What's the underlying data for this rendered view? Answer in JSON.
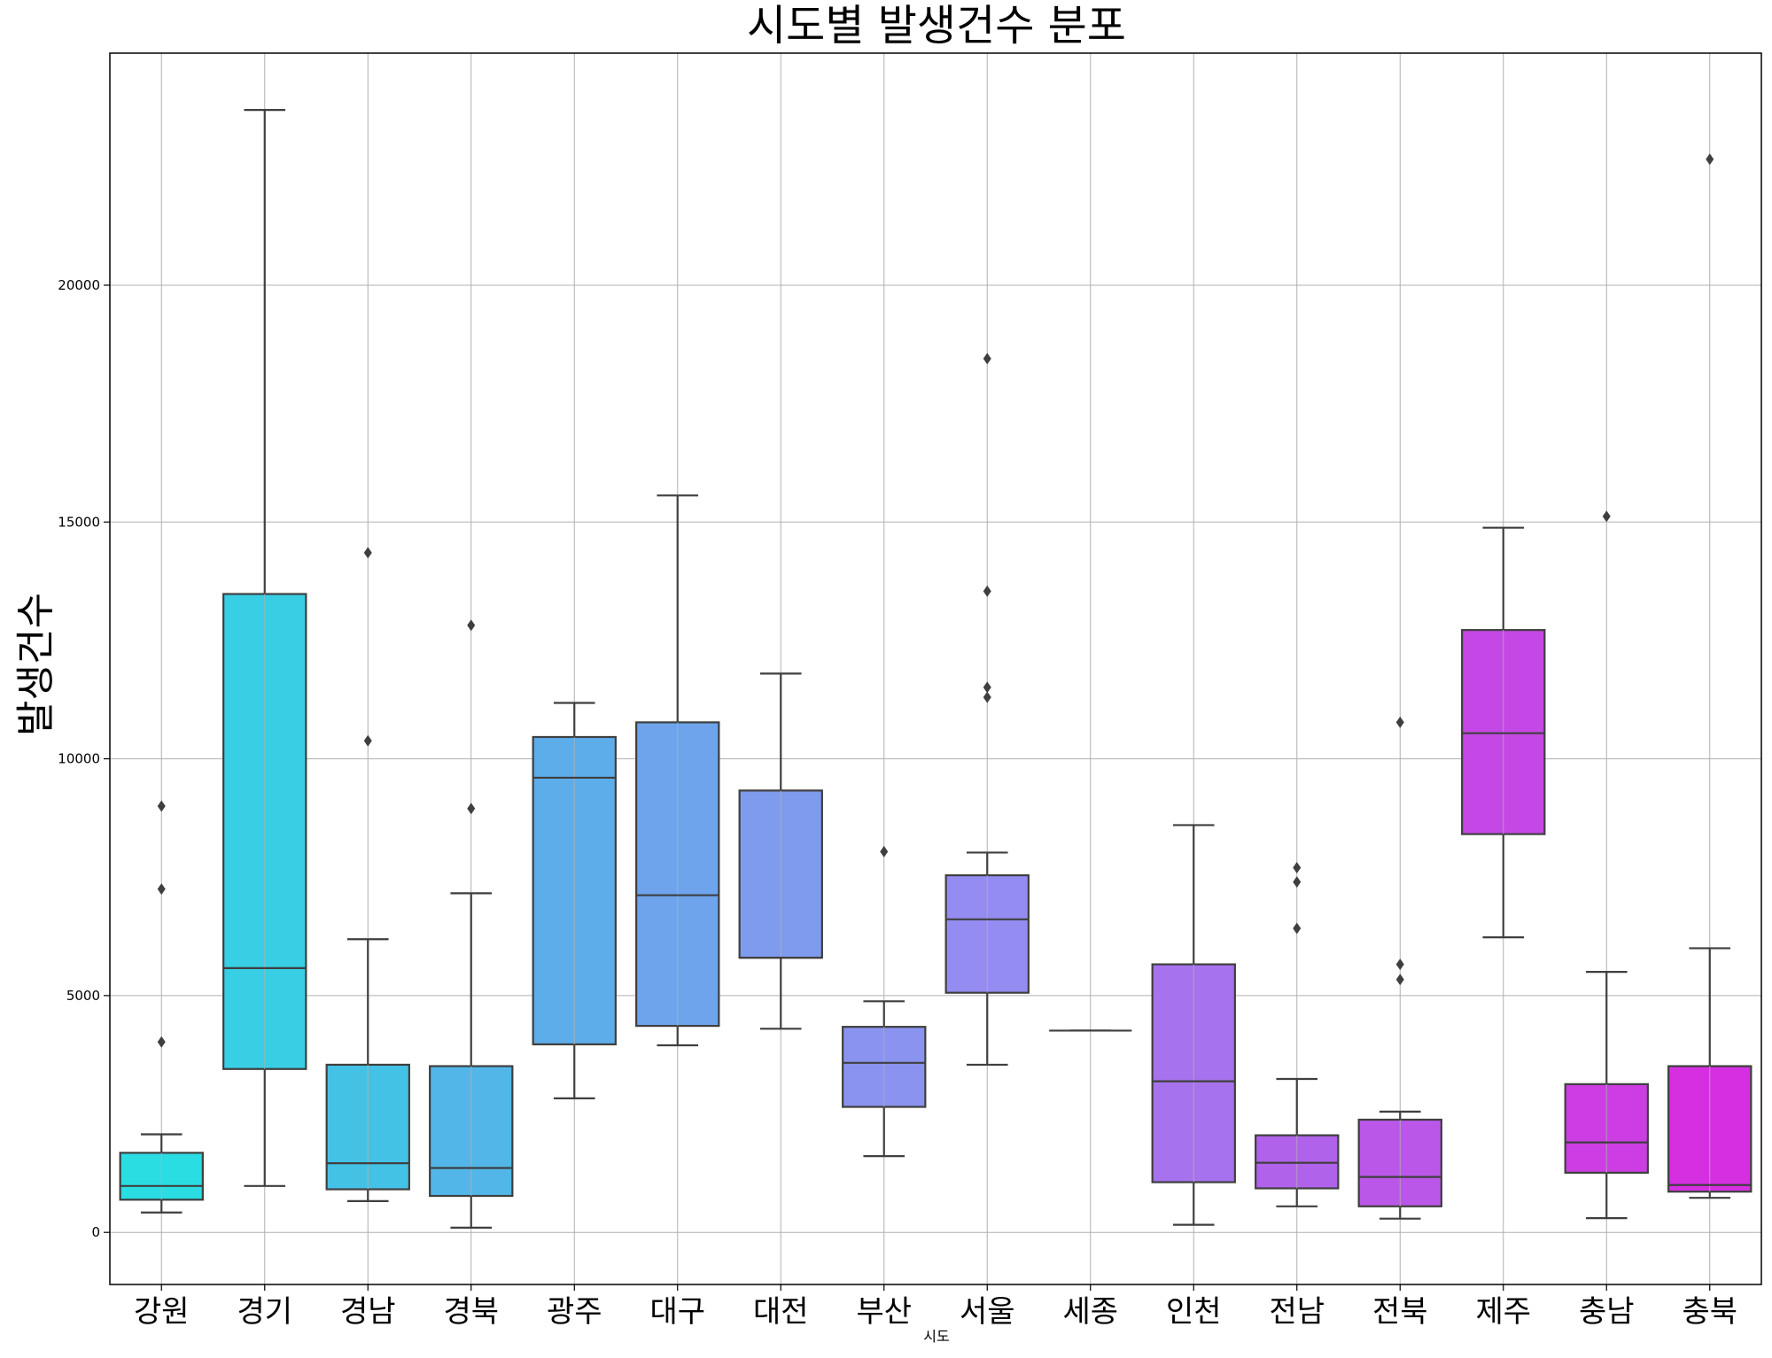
{
  "chart_data": {
    "type": "boxplot",
    "title": "시도별 발생건수 분포",
    "xlabel": "시도",
    "ylabel": "발생건수",
    "ylim": [
      -1100,
      24900
    ],
    "yticks": [
      0,
      5000,
      10000,
      15000,
      20000
    ],
    "grid": true,
    "categories": [
      "강원",
      "경기",
      "경남",
      "경북",
      "광주",
      "대구",
      "대전",
      "부산",
      "서울",
      "세종",
      "인천",
      "전남",
      "전북",
      "제주",
      "충남",
      "충북"
    ],
    "colors": [
      "#29dde3",
      "#38cee4",
      "#44c2e6",
      "#52b7e8",
      "#5dadea",
      "#6da4ec",
      "#7e9bed",
      "#8a93ef",
      "#958cf1",
      "#9e84f1",
      "#a772ed",
      "#b062eb",
      "#bb57e8",
      "#c548e6",
      "#cc3ee3",
      "#d62ee1"
    ],
    "boxes": [
      {
        "category": "강원",
        "whisker_low": 420,
        "q1": 690,
        "median": 980,
        "q3": 1680,
        "whisker_high": 2070,
        "outliers": [
          4020,
          7250,
          9000
        ]
      },
      {
        "category": "경기",
        "whisker_low": 980,
        "q1": 3450,
        "median": 5580,
        "q3": 13480,
        "whisker_high": 23700,
        "outliers": []
      },
      {
        "category": "경남",
        "whisker_low": 660,
        "q1": 910,
        "median": 1460,
        "q3": 3540,
        "whisker_high": 6190,
        "outliers": [
          10380,
          14350
        ]
      },
      {
        "category": "경북",
        "whisker_low": 100,
        "q1": 770,
        "median": 1360,
        "q3": 3510,
        "whisker_high": 7160,
        "outliers": [
          8950,
          12820
        ]
      },
      {
        "category": "광주",
        "whisker_low": 2830,
        "q1": 3970,
        "median": 9600,
        "q3": 10460,
        "whisker_high": 11180,
        "outliers": []
      },
      {
        "category": "대구",
        "whisker_low": 3950,
        "q1": 4360,
        "median": 7120,
        "q3": 10770,
        "whisker_high": 15560,
        "outliers": []
      },
      {
        "category": "대전",
        "whisker_low": 4300,
        "q1": 5800,
        "median": 5800,
        "q3": 9330,
        "whisker_high": 11800,
        "outliers": []
      },
      {
        "category": "부산",
        "whisker_low": 1610,
        "q1": 2650,
        "median": 3580,
        "q3": 4340,
        "whisker_high": 4880,
        "outliers": [
          8040
        ]
      },
      {
        "category": "서울",
        "whisker_low": 3540,
        "q1": 5060,
        "median": 6610,
        "q3": 7540,
        "whisker_high": 8020,
        "outliers": [
          11300,
          11510,
          13540,
          18450
        ]
      },
      {
        "category": "세종",
        "whisker_low": 4260,
        "q1": 4260,
        "median": 4260,
        "q3": 4260,
        "whisker_high": 4260,
        "outliers": []
      },
      {
        "category": "인천",
        "whisker_low": 160,
        "q1": 1060,
        "median": 3190,
        "q3": 5660,
        "whisker_high": 8600,
        "outliers": []
      },
      {
        "category": "전남",
        "whisker_low": 550,
        "q1": 930,
        "median": 1470,
        "q3": 2050,
        "whisker_high": 3240,
        "outliers": [
          6420,
          7400,
          7700
        ]
      },
      {
        "category": "전북",
        "whisker_low": 290,
        "q1": 550,
        "median": 1170,
        "q3": 2380,
        "whisker_high": 2550,
        "outliers": [
          5340,
          5660,
          10770
        ]
      },
      {
        "category": "제주",
        "whisker_low": 6230,
        "q1": 8410,
        "median": 10540,
        "q3": 12720,
        "whisker_high": 14880,
        "outliers": []
      },
      {
        "category": "충남",
        "whisker_low": 300,
        "q1": 1260,
        "median": 1900,
        "q3": 3130,
        "whisker_high": 5500,
        "outliers": [
          15120
        ]
      },
      {
        "category": "충북",
        "whisker_low": 730,
        "q1": 860,
        "median": 1000,
        "q3": 3510,
        "whisker_high": 6000,
        "outliers": [
          22660
        ]
      }
    ]
  }
}
